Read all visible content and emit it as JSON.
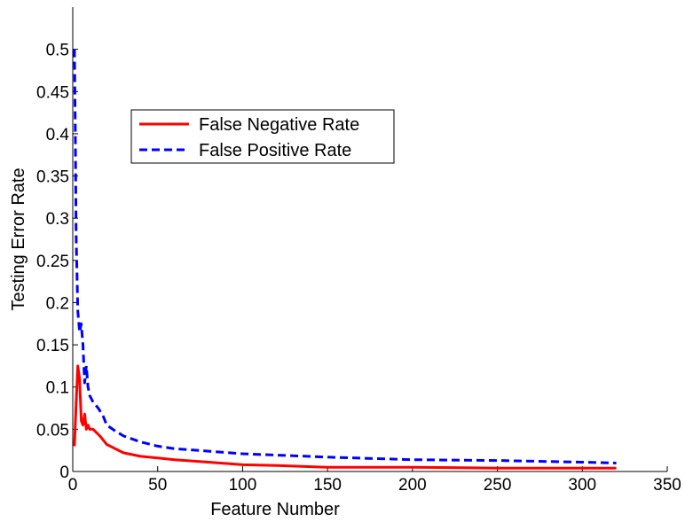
{
  "chart_data": {
    "type": "line",
    "title": "",
    "xlabel": "Feature Number",
    "ylabel": "Testing Error Rate",
    "xlim": [
      0,
      350
    ],
    "ylim": [
      0,
      0.55
    ],
    "xticks": [
      0,
      50,
      100,
      150,
      200,
      250,
      300,
      350
    ],
    "yticks": [
      0,
      0.05,
      0.1,
      0.15,
      0.2,
      0.25,
      0.3,
      0.35,
      0.4,
      0.45,
      0.5
    ],
    "xtick_labels": [
      "0",
      "50",
      "100",
      "150",
      "200",
      "250",
      "300",
      "350"
    ],
    "ytick_labels": [
      "0",
      "0.05",
      "0.1",
      "0.15",
      "0.2",
      "0.25",
      "0.3",
      "0.35",
      "0.4",
      "0.45",
      "0.5"
    ],
    "grid": false,
    "legend_position": "upper-left",
    "series": [
      {
        "name": "False Negative Rate",
        "color": "#ff0000",
        "style": "solid",
        "x": [
          1,
          2,
          3,
          4,
          5,
          6,
          7,
          8,
          9,
          10,
          12,
          14,
          16,
          18,
          20,
          25,
          30,
          40,
          50,
          60,
          80,
          100,
          120,
          150,
          200,
          250,
          300,
          320
        ],
        "y": [
          0.03,
          0.08,
          0.125,
          0.11,
          0.06,
          0.055,
          0.068,
          0.05,
          0.055,
          0.05,
          0.05,
          0.046,
          0.042,
          0.037,
          0.032,
          0.027,
          0.022,
          0.018,
          0.016,
          0.014,
          0.011,
          0.008,
          0.007,
          0.005,
          0.005,
          0.004,
          0.004,
          0.004
        ]
      },
      {
        "name": "False Positive Rate",
        "color": "#0000ff",
        "style": "dashed",
        "x": [
          1,
          1.5,
          2,
          3,
          4,
          5,
          6,
          7,
          8,
          9,
          10,
          12,
          15,
          18,
          20,
          25,
          30,
          40,
          50,
          60,
          80,
          100,
          150,
          200,
          250,
          300,
          320
        ],
        "y": [
          0.5,
          0.4,
          0.28,
          0.19,
          0.165,
          0.175,
          0.15,
          0.105,
          0.125,
          0.1,
          0.09,
          0.082,
          0.075,
          0.065,
          0.055,
          0.048,
          0.042,
          0.035,
          0.03,
          0.027,
          0.024,
          0.021,
          0.017,
          0.014,
          0.013,
          0.011,
          0.01
        ]
      }
    ]
  }
}
